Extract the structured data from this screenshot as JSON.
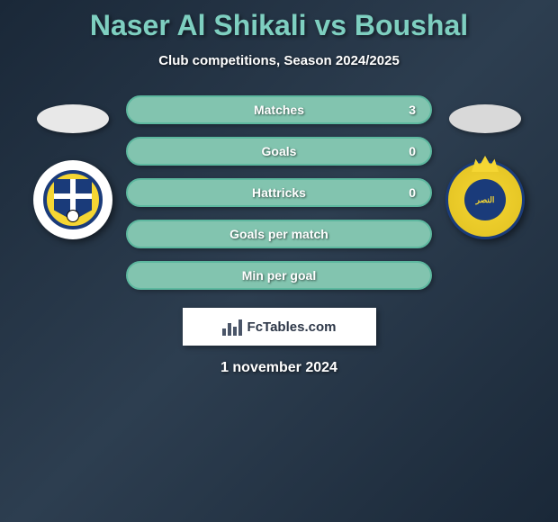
{
  "title": "Naser Al Shikali vs Boushal",
  "subtitle": "Club competitions, Season 2024/2025",
  "date": "1 november 2024",
  "logo_text": "FcTables.com",
  "colors": {
    "title_color": "#7ecfc0",
    "text_color": "#ffffff",
    "pill_border": "#5db89f",
    "pill_fill_light": "#8fcbb8",
    "pill_fill_dark": "#4a9b82",
    "oval_left": "#e8e8e8",
    "oval_right": "#d9d9d9",
    "background_start": "#1a2838",
    "background_end": "#2d3e50"
  },
  "stats": [
    {
      "label": "Matches",
      "value_left": "",
      "value_right": "3",
      "fill_percent_right": 100,
      "background": "#82c4af",
      "border_color": "#5db89f"
    },
    {
      "label": "Goals",
      "value_left": "",
      "value_right": "0",
      "fill_percent_right": 0,
      "background": "#82c4af",
      "border_color": "#5db89f"
    },
    {
      "label": "Hattricks",
      "value_left": "",
      "value_right": "0",
      "fill_percent_right": 0,
      "background": "#82c4af",
      "border_color": "#5db89f"
    },
    {
      "label": "Goals per match",
      "value_left": "",
      "value_right": "",
      "fill_percent_right": 0,
      "background": "#82c4af",
      "border_color": "#5db89f"
    },
    {
      "label": "Min per goal",
      "value_left": "",
      "value_right": "",
      "fill_percent_right": 0,
      "background": "#82c4af",
      "border_color": "#5db89f"
    }
  ],
  "teams": {
    "left": {
      "name": "team-left",
      "oval_color": "#e8e8e8"
    },
    "right": {
      "name": "team-right",
      "oval_color": "#d9d9d9"
    }
  }
}
